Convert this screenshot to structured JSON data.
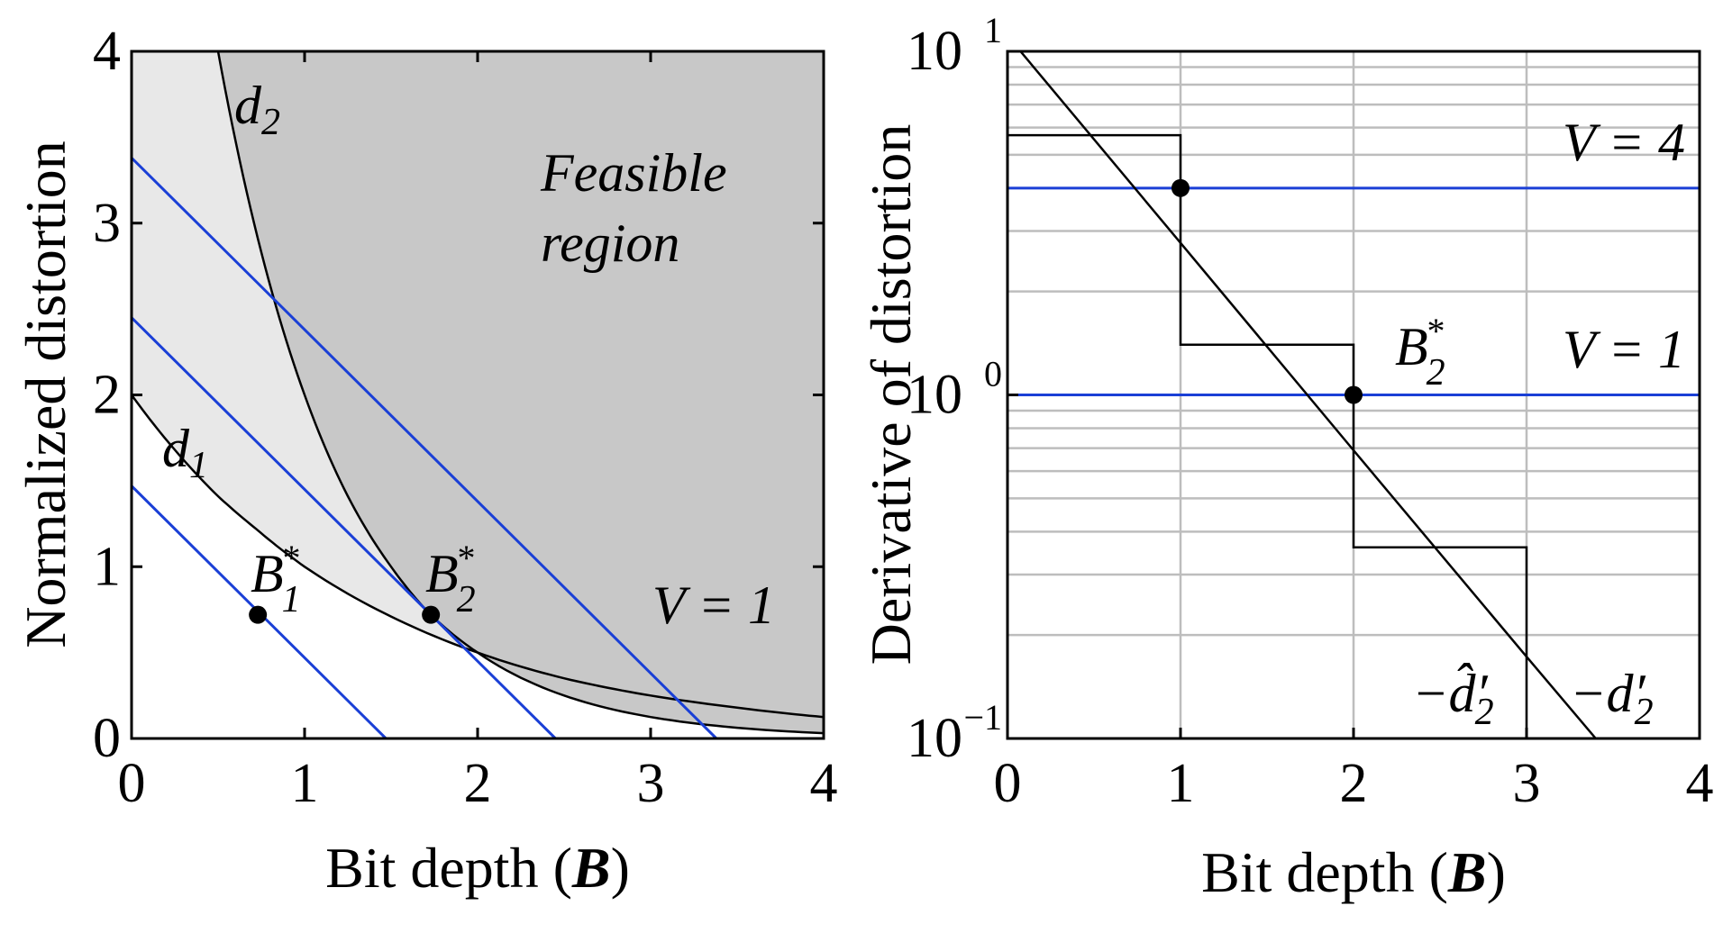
{
  "chart_data": [
    {
      "type": "line",
      "panel": "left",
      "xlabel": "Bit depth (B)",
      "ylabel": "Normalized distortion",
      "xlim": [
        0,
        4
      ],
      "ylim": [
        0,
        4
      ],
      "xticks": [
        "0",
        "1",
        "2",
        "3",
        "4"
      ],
      "yticks": [
        "0",
        "1",
        "2",
        "3",
        "4"
      ],
      "grid": false,
      "series": [
        {
          "name": "d₁",
          "x": [
            0,
            0.25,
            0.5,
            0.72,
            1,
            1.5,
            2,
            2.5,
            3,
            3.5,
            4
          ],
          "y": [
            2,
            1.68,
            1.41,
            1.22,
            1.0,
            0.71,
            0.5,
            0.35,
            0.25,
            0.18,
            0.125
          ]
        },
        {
          "name": "d₂",
          "x": [
            0.5,
            0.75,
            1,
            1.25,
            1.5,
            1.72,
            2,
            2.5,
            3,
            3.5,
            4
          ],
          "y": [
            4.0,
            2.83,
            2.0,
            1.41,
            1.0,
            0.73,
            0.5,
            0.25,
            0.125,
            0.0625,
            0.031
          ]
        }
      ],
      "tangent_lines_V1": [
        {
          "x": [
            0,
            1.47
          ],
          "y": [
            1.47,
            0
          ]
        },
        {
          "x": [
            0,
            2.45
          ],
          "y": [
            2.45,
            0
          ]
        },
        {
          "x": [
            0,
            3.38
          ],
          "y": [
            3.38,
            0
          ]
        }
      ],
      "points": [
        {
          "label": "B₁*",
          "x": 0.73,
          "y": 0.72
        },
        {
          "label": "B₂*",
          "x": 1.73,
          "y": 0.72
        }
      ],
      "annotations": [
        "d",
        "2",
        "d",
        "1",
        "Feasible",
        "region",
        "V = 1"
      ],
      "point_labels": {
        "B": "B",
        "sub1": "1",
        "sub2": "2",
        "star": "*"
      },
      "colors": {
        "feasible": "#c8c8c8",
        "between": "#e8e8e8",
        "lines": "#1a3fd6",
        "curves": "#000000"
      }
    },
    {
      "type": "line",
      "panel": "right",
      "xlabel": "Bit depth (B)",
      "ylabel": "Derivative of distortion",
      "xlim": [
        0,
        4
      ],
      "ylim": [
        0.1,
        10
      ],
      "yscale": "log",
      "xticks": [
        "0",
        "1",
        "2",
        "3",
        "4"
      ],
      "yticks": [
        {
          "base": "10",
          "exp": "−1"
        },
        {
          "base": "10",
          "exp": "0"
        },
        {
          "base": "10",
          "exp": "1"
        }
      ],
      "grid": true,
      "series": [
        {
          "name": "−d₂′",
          "x": [
            0,
            1,
            2,
            3,
            3.4
          ],
          "y": [
            11.1,
            2.77,
            0.69,
            0.173,
            0.1
          ]
        },
        {
          "name": "−d̂₂′",
          "x": [
            0,
            1,
            1,
            2,
            2,
            3,
            3
          ],
          "y": [
            5.7,
            5.7,
            1.4,
            1.4,
            0.36,
            0.36,
            0.1
          ]
        }
      ],
      "hlines": [
        {
          "label": "V = 4",
          "y": 4
        },
        {
          "label": "V = 1",
          "y": 1
        }
      ],
      "points": [
        {
          "x": 1,
          "y": 4
        },
        {
          "label": "B₂*",
          "x": 2,
          "y": 1
        }
      ],
      "annotations": [
        "V = 4",
        "V = 1",
        "B",
        "2",
        "*",
        "−d̂′",
        "2",
        "−d′",
        "2"
      ],
      "colors": {
        "lines": "#1a3fd6",
        "curves": "#000000",
        "grid": "#bdbdbd"
      }
    }
  ],
  "labels": {
    "xlabel_prefix": "Bit depth (",
    "xlabel_var": "B",
    "xlabel_suffix": ")"
  }
}
